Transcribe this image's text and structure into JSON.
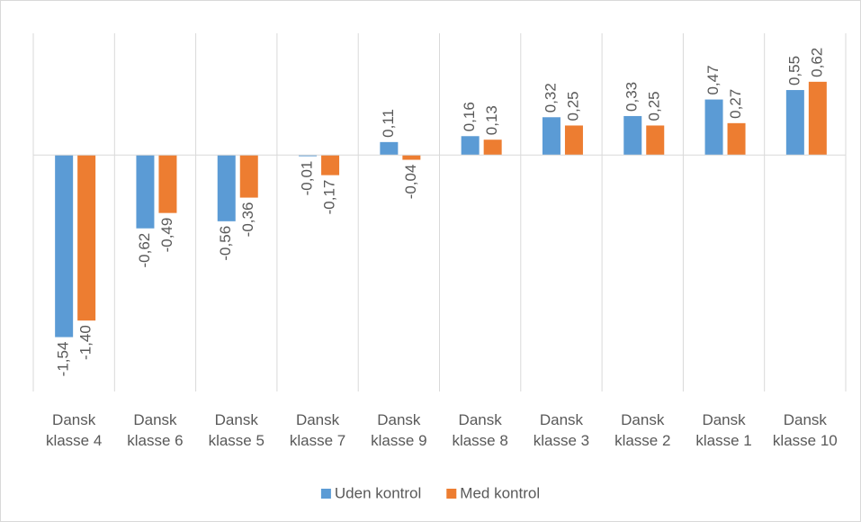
{
  "chart_data": {
    "type": "bar",
    "categories": [
      "Dansk klasse 4",
      "Dansk klasse 6",
      "Dansk klasse 5",
      "Dansk klasse 7",
      "Dansk klasse 9",
      "Dansk klasse 8",
      "Dansk klasse 3",
      "Dansk klasse 2",
      "Dansk klasse 1",
      "Dansk klasse 10"
    ],
    "series": [
      {
        "name": "Uden kontrol",
        "color": "#5b9bd5",
        "values": [
          -1.54,
          -0.62,
          -0.56,
          -0.01,
          0.11,
          0.16,
          0.32,
          0.33,
          0.47,
          0.55
        ],
        "value_labels": [
          "-1,54",
          "-0,62",
          "-0,56",
          "-0,01",
          "0,11",
          "0,16",
          "0,32",
          "0,33",
          "0,47",
          "0,55"
        ]
      },
      {
        "name": "Med kontrol",
        "color": "#ed7d31",
        "values": [
          -1.4,
          -0.49,
          -0.36,
          -0.17,
          -0.04,
          0.13,
          0.25,
          0.25,
          0.27,
          0.62
        ],
        "value_labels": [
          "-1,40",
          "-0,49",
          "-0,36",
          "-0,17",
          "-0,04",
          "0,13",
          "0,25",
          "0,25",
          "0,27",
          "0,62"
        ]
      }
    ],
    "ylim": [
      -2,
      1.03
    ],
    "legend": "bottom"
  }
}
